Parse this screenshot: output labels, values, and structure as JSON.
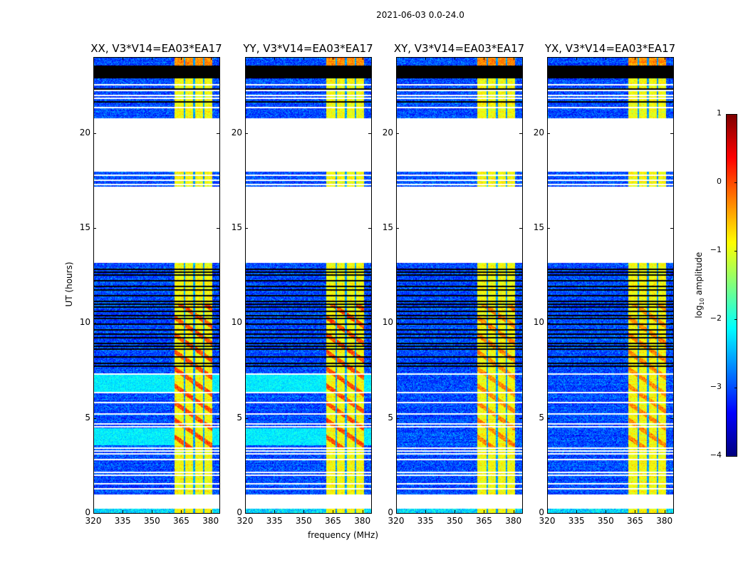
{
  "chart_data": {
    "type": "heatmap",
    "title": "2021-06-03 0.0-24.0",
    "xlabel": "frequency (MHz)",
    "ylabel": "UT (hours)",
    "xlim": [
      320,
      384.5
    ],
    "ylim": [
      0,
      24
    ],
    "xticks": [
      320,
      335,
      350,
      365,
      380
    ],
    "xtick_labels": [
      "320",
      "335",
      "350",
      "365",
      "380"
    ],
    "yticks": [
      0,
      5,
      10,
      15,
      20
    ],
    "ytick_labels": [
      "0",
      "5",
      "10",
      "15",
      "20"
    ],
    "panels": [
      {
        "title": "XX, V3*V14=EA03*EA17",
        "pol": "XX"
      },
      {
        "title": "YY, V3*V14=EA03*EA17",
        "pol": "YY"
      },
      {
        "title": "XY, V3*V14=EA03*EA17",
        "pol": "XY"
      },
      {
        "title": "YX, V3*V14=EA03*EA17",
        "pol": "YX"
      }
    ],
    "colorbar": {
      "label_main": "log",
      "label_sub": "10",
      "label_rest": " amplitude",
      "range": [
        -4,
        1
      ],
      "colormap": "jet",
      "ticks": [
        1,
        0,
        -1,
        -2,
        -3,
        -4
      ],
      "tick_labels": [
        "1",
        "0",
        "−1",
        "−2",
        "−3",
        "−4"
      ]
    },
    "data_segments_h": [
      [
        0.0,
        0.26
      ],
      [
        1.0,
        13.2
      ],
      [
        17.2,
        18.0
      ],
      [
        20.8,
        22.9
      ],
      [
        23.6,
        24.0
      ]
    ],
    "zero_segments_h": [
      [
        22.9,
        23.6
      ]
    ],
    "flagged_lines_h": [
      1.35,
      1.6,
      2.05,
      2.2,
      2.9,
      3.2,
      3.35,
      3.5,
      4.6,
      4.75,
      5.3,
      5.9,
      6.4,
      7.4,
      17.35,
      17.6,
      17.85,
      21.4,
      21.9,
      22.05,
      22.3,
      22.6
    ],
    "zero_lines_h": [
      7.8,
      7.95,
      8.3,
      8.7,
      8.85,
      9.0,
      9.3,
      9.5,
      9.7,
      10.0,
      10.3,
      10.45,
      10.7,
      10.9,
      11.05,
      11.2,
      11.5,
      11.8,
      12.0,
      12.3,
      12.6,
      12.75,
      12.9,
      21.7,
      22.4
    ],
    "background_log_amp": -3.0,
    "parallel_hand_bright_h": [
      [
        3.6,
        4.5
      ],
      [
        6.4,
        7.3
      ]
    ],
    "parallel_hand_bright_log_amp": -2.2,
    "rfi_band_mhz": [
      361,
      380.5
    ],
    "rfi_log_amp": -0.9,
    "rfi_gap_columns_mhz": [
      366.2,
      371.2,
      376.2
    ]
  }
}
